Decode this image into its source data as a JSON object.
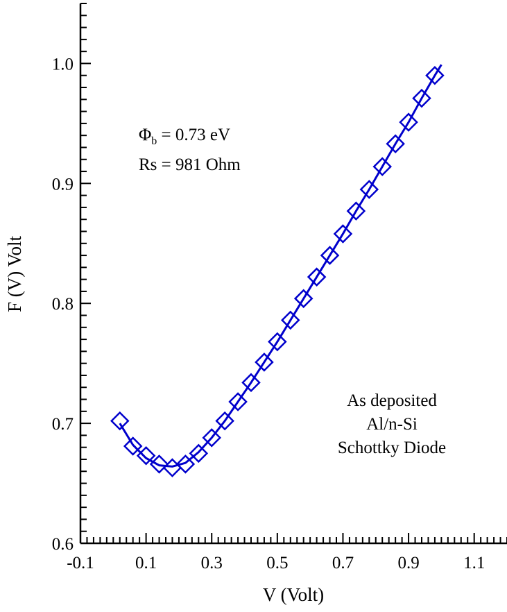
{
  "chart_data": {
    "type": "scatter",
    "xlabel": "V (Volt)",
    "ylabel": "F (V) Volt",
    "xlim": [
      -0.1,
      1.2
    ],
    "ylim": [
      0.6,
      1.05
    ],
    "x_ticks": [
      "-0.1",
      "0.1",
      "0.3",
      "0.5",
      "0.7",
      "0.9",
      "1.1"
    ],
    "x_tick_values": [
      -0.1,
      0.1,
      0.3,
      0.5,
      0.7,
      0.9,
      1.1
    ],
    "y_ticks": [
      "0.6",
      "0.7",
      "0.8",
      "0.9",
      "1.0"
    ],
    "y_tick_values": [
      0.6,
      0.7,
      0.8,
      0.9,
      1.0
    ],
    "grid": false,
    "marker": "diamond-open",
    "color": "#0000cc",
    "series": [
      {
        "x": [
          0.02,
          0.06,
          0.1,
          0.14,
          0.18,
          0.22,
          0.26,
          0.3,
          0.34,
          0.38,
          0.42,
          0.46,
          0.5,
          0.54,
          0.58,
          0.62,
          0.66,
          0.7,
          0.74,
          0.78,
          0.82,
          0.86,
          0.9,
          0.94,
          0.98
        ],
        "y": [
          0.702,
          0.681,
          0.673,
          0.666,
          0.663,
          0.666,
          0.675,
          0.688,
          0.702,
          0.718,
          0.734,
          0.751,
          0.768,
          0.786,
          0.804,
          0.822,
          0.84,
          0.858,
          0.877,
          0.895,
          0.914,
          0.933,
          0.951,
          0.971,
          0.99
        ]
      }
    ],
    "fit_line": {
      "x": [
        0.02,
        0.06,
        0.1,
        0.14,
        0.18,
        0.22,
        0.26,
        0.3,
        0.34,
        0.38,
        0.42,
        0.46,
        0.5,
        0.54,
        0.58,
        0.62,
        0.66,
        0.7,
        0.74,
        0.78,
        0.82,
        0.86,
        0.9,
        0.94,
        0.98,
        1.0
      ],
      "y": [
        0.7,
        0.682,
        0.671,
        0.665,
        0.664,
        0.667,
        0.676,
        0.688,
        0.702,
        0.718,
        0.734,
        0.751,
        0.768,
        0.786,
        0.804,
        0.822,
        0.84,
        0.858,
        0.877,
        0.895,
        0.914,
        0.933,
        0.951,
        0.971,
        0.99,
        0.999
      ]
    },
    "annotations": {
      "barrier_symbol": "Φ",
      "barrier_sub": "b",
      "barrier_value": " = 0.73 eV",
      "rs": "Rs = 981 Ohm",
      "sample_line1": "As deposited",
      "sample_line2": "Al/n-Si",
      "sample_line3": "Schottky Diode"
    }
  }
}
